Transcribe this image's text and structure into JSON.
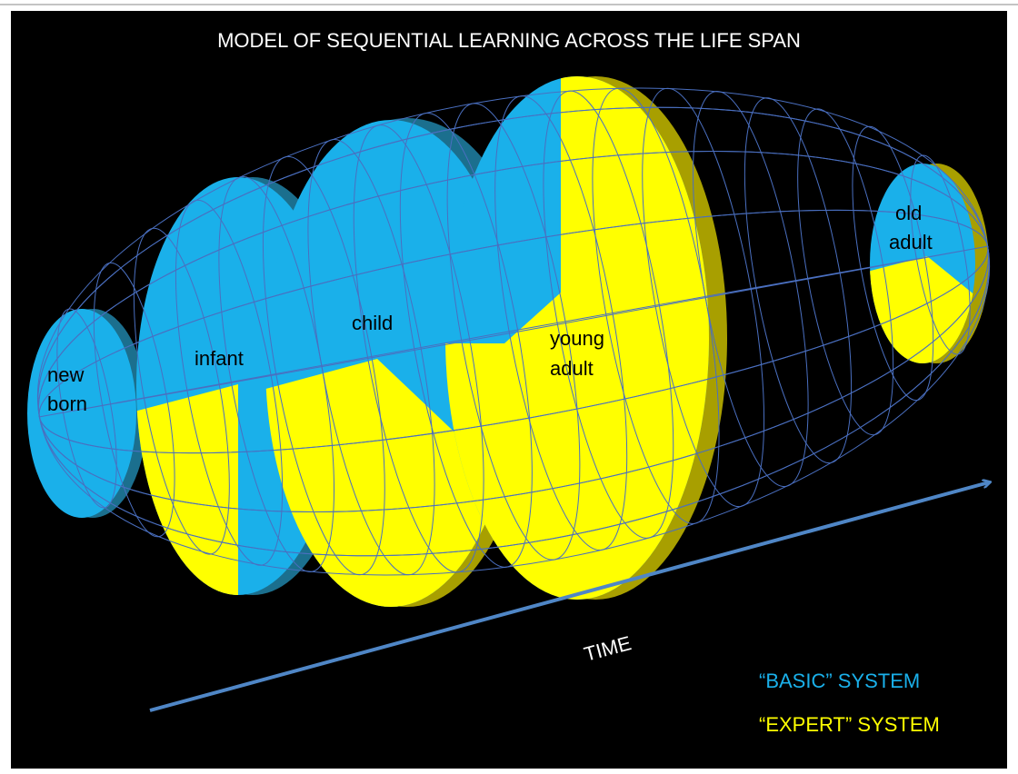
{
  "title": "MODEL OF SEQUENTIAL LEARNING ACROSS THE LIFE SPAN",
  "stages": [
    {
      "lines": [
        "new",
        "born"
      ]
    },
    {
      "lines": [
        "infant"
      ]
    },
    {
      "lines": [
        "child"
      ]
    },
    {
      "lines": [
        "young",
        "adult"
      ]
    },
    {
      "lines": [
        "old",
        "adult"
      ]
    }
  ],
  "axis_label": "TIME",
  "legend": [
    "“BASIC” SYSTEM",
    "“EXPERT” SYSTEM"
  ]
}
